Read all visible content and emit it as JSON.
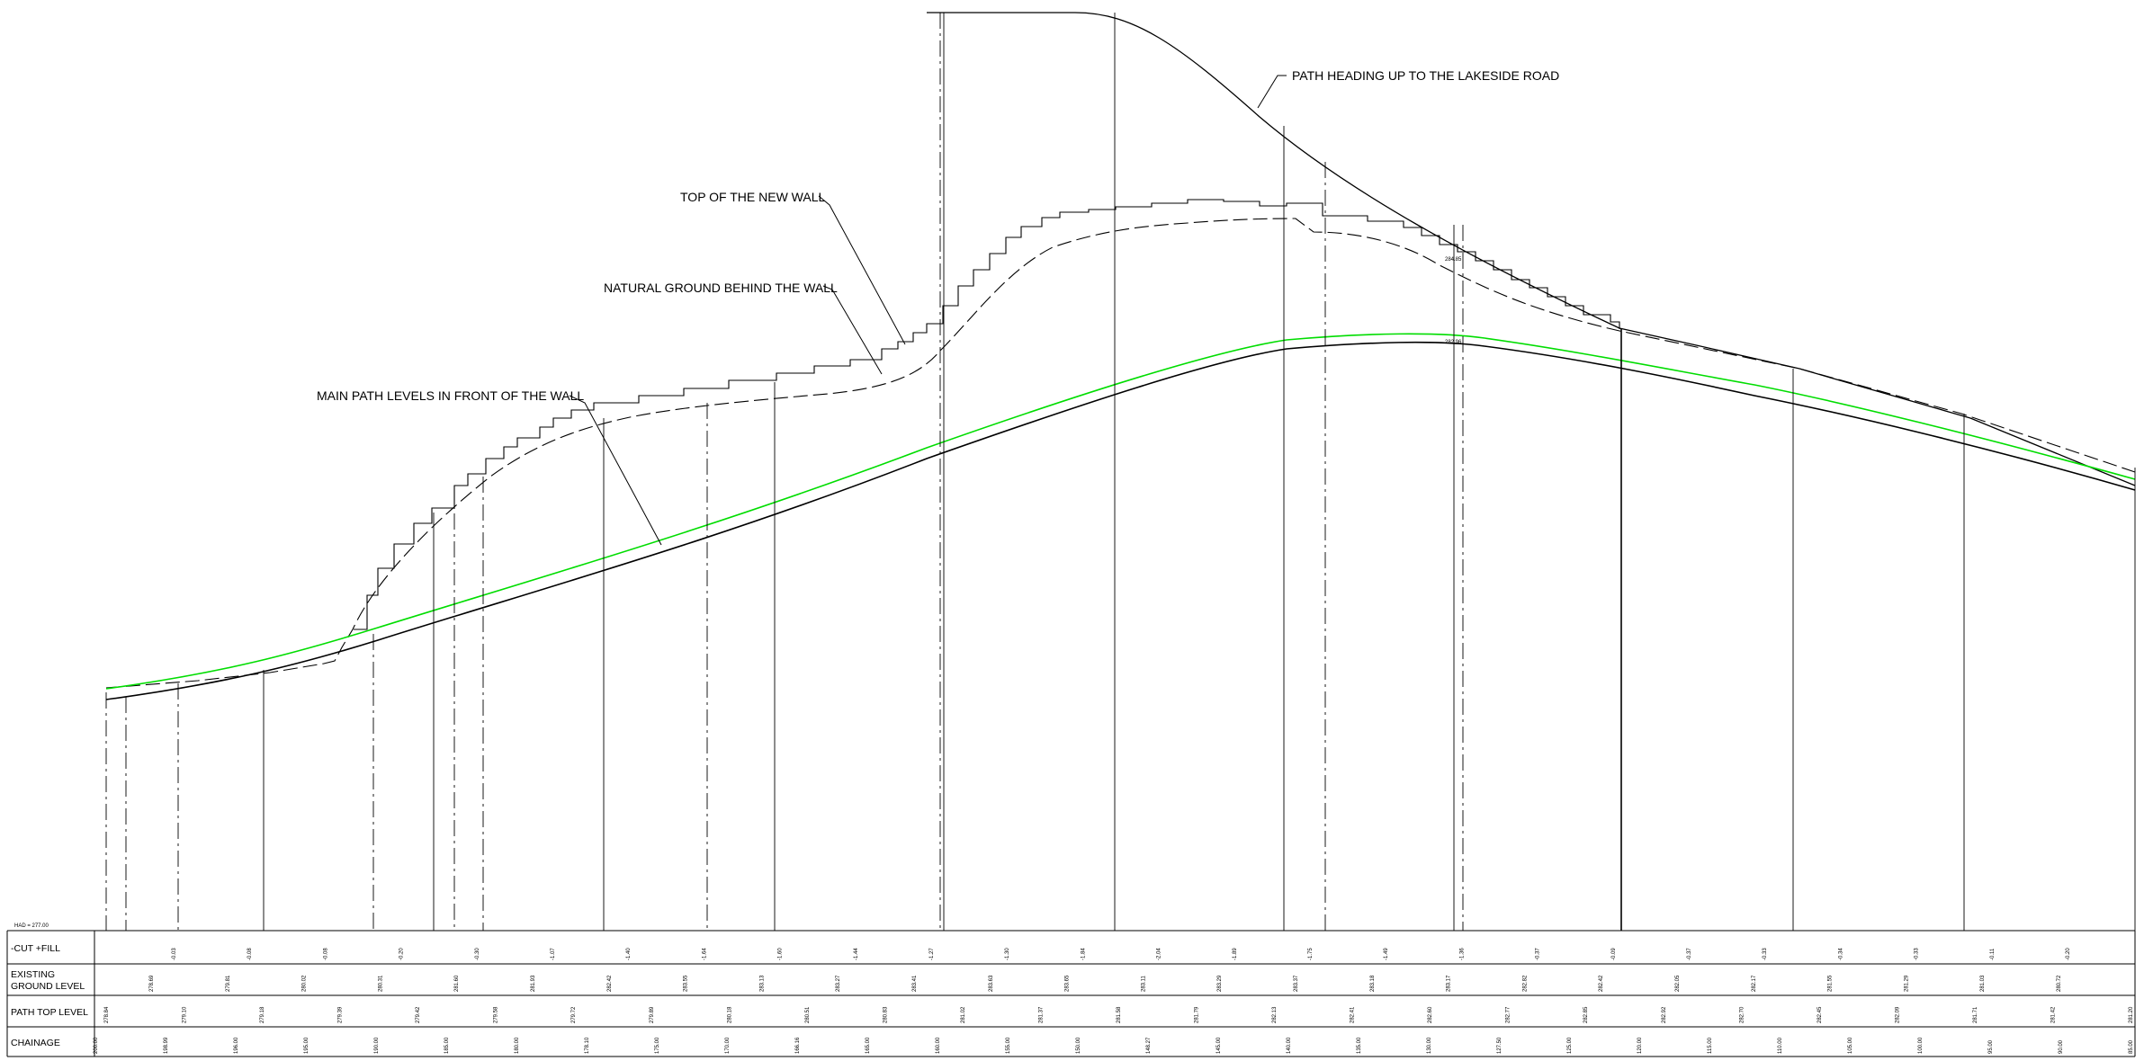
{
  "annotations": {
    "path_heading": "PATH HEADING UP TO THE LAKESIDE ROAD",
    "top_wall": "TOP OF THE NEW WALL",
    "natural_ground": "NATURAL GROUND BEHIND THE WALL",
    "main_path": "MAIN PATH LEVELS IN FRONT OF THE WALL"
  },
  "datum": "HAD = 277.00",
  "spot_levels": {
    "wall_top": "284.85",
    "path_top": "282.96"
  },
  "rows": {
    "cutfill": "-CUT +FILL",
    "existing_1": "EXISTING",
    "existing_2": "GROUND LEVEL",
    "path_top": "PATH TOP LEVEL",
    "chainage": "CHAINAGE"
  },
  "colors": {
    "profile": "#000000",
    "design_path": "#00dd00"
  },
  "table": {
    "cutfill": [
      "-0.03",
      "-0.08",
      "-0.08",
      "-0.20",
      "-0.30",
      "-1.07",
      "-1.40",
      "-1.64",
      "-1.60",
      "-1.44",
      "-1.27",
      "-1.30",
      "-1.84",
      "-2.04",
      "-1.89",
      "-1.75",
      "-1.49",
      "-1.36",
      "-0.37",
      "-0.09",
      "-0.37",
      "-0.33",
      "-0.34",
      "-0.33",
      "-0.11",
      "-0.20"
    ],
    "existing": [
      "278.69",
      "279.81",
      "280.02",
      "280.31",
      "281.60",
      "281.93",
      "282.42",
      "283.55",
      "283.13",
      "283.27",
      "283.41",
      "283.63",
      "283.65",
      "283.11",
      "283.29",
      "283.37",
      "283.18",
      "283.17",
      "282.82",
      "282.42",
      "282.05",
      "282.17",
      "281.55",
      "281.29",
      "281.03",
      "280.72"
    ],
    "path_top": [
      "278.84",
      "279.10",
      "279.18",
      "279.39",
      "279.42",
      "279.58",
      "279.72",
      "279.89",
      "280.18",
      "280.51",
      "280.83",
      "281.02",
      "281.37",
      "281.58",
      "281.79",
      "282.13",
      "282.41",
      "282.60",
      "282.77",
      "282.85",
      "282.92",
      "282.70",
      "282.45",
      "282.09",
      "281.71",
      "281.42",
      "281.20"
    ],
    "chainage": [
      "200.00",
      "198.99",
      "196.00",
      "195.00",
      "190.00",
      "185.00",
      "180.00",
      "178.10",
      "175.00",
      "170.00",
      "166.16",
      "165.00",
      "160.00",
      "155.00",
      "150.00",
      "148.27",
      "145.00",
      "140.00",
      "135.00",
      "130.00",
      "127.50",
      "125.00",
      "120.00",
      "115.00",
      "110.00",
      "105.00",
      "100.00",
      "95.00",
      "90.00",
      "85.00"
    ]
  }
}
